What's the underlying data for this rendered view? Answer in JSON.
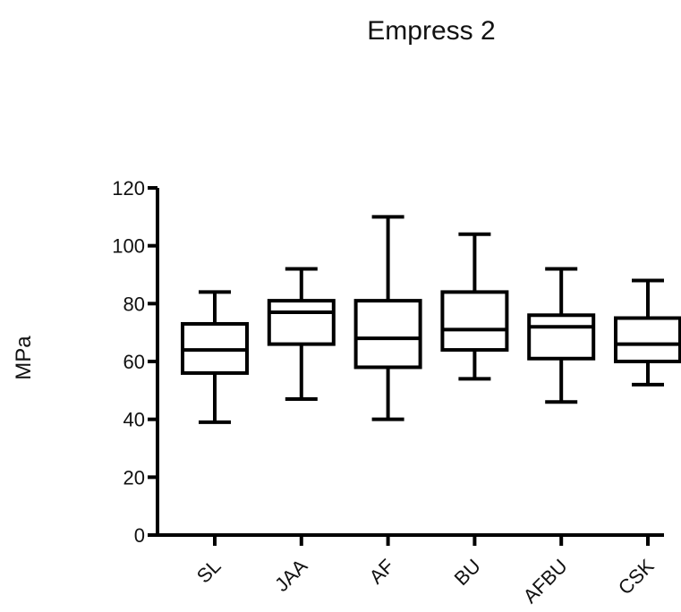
{
  "chart_data": {
    "type": "box",
    "title": "Empress 2",
    "xlabel": "",
    "ylabel": "MPa",
    "ylim": [
      0,
      120
    ],
    "yticks": [
      0,
      20,
      40,
      60,
      80,
      100,
      120
    ],
    "categories": [
      "SL",
      "JAA",
      "AF",
      "BU",
      "AFBU",
      "CSK"
    ],
    "boxes": [
      {
        "category": "SL",
        "min": 39,
        "q1": 56,
        "median": 64,
        "q3": 73,
        "max": 84
      },
      {
        "category": "JAA",
        "min": 47,
        "q1": 66,
        "median": 77,
        "q3": 81,
        "max": 92
      },
      {
        "category": "AF",
        "min": 40,
        "q1": 58,
        "median": 68,
        "q3": 81,
        "max": 110
      },
      {
        "category": "BU",
        "min": 54,
        "q1": 64,
        "median": 71,
        "q3": 84,
        "max": 104
      },
      {
        "category": "AFBU",
        "min": 46,
        "q1": 61,
        "median": 72,
        "q3": 76,
        "max": 92
      },
      {
        "category": "CSK",
        "min": 52,
        "q1": 60,
        "median": 66,
        "q3": 75,
        "max": 88
      }
    ],
    "grid": false,
    "colors": {
      "stroke": "#000000",
      "background": "#ffffff"
    }
  }
}
